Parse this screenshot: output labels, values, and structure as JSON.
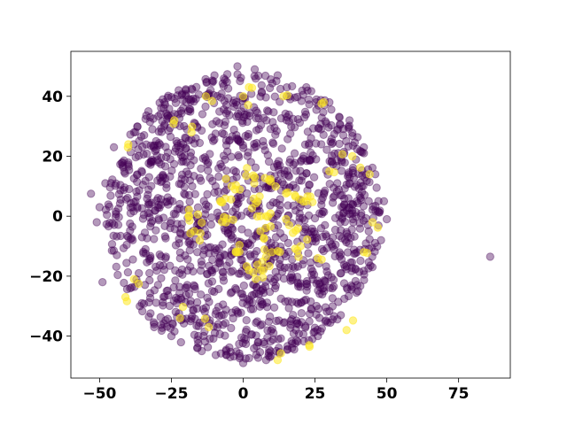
{
  "chart_data": {
    "type": "scatter",
    "title": "",
    "xlabel": "",
    "ylabel": "",
    "xlim": [
      -60,
      93
    ],
    "ylim": [
      -54,
      55
    ],
    "x_ticks": [
      -50,
      -25,
      0,
      25,
      50,
      75
    ],
    "y_ticks": [
      -40,
      -20,
      0,
      20,
      40
    ],
    "x_tick_labels": [
      "−50",
      "−25",
      "0",
      "25",
      "50",
      "75"
    ],
    "y_tick_labels": [
      "−40",
      "−20",
      "0",
      "20",
      "40"
    ],
    "grid": false,
    "legend": "none",
    "marker_alpha": 0.4,
    "series": [
      {
        "color": "#440154",
        "distribution": "dense circular cloud, roughly 1500 points within radius ~50 centered near (0, 0)",
        "points": [
          [
            -53,
            7.5
          ],
          [
            -51,
            -2
          ],
          [
            -50,
            3
          ],
          [
            -49,
            -22
          ],
          [
            -48,
            11
          ],
          [
            -45,
            23
          ],
          [
            -44,
            -13
          ],
          [
            -42,
            18
          ],
          [
            -40,
            -7
          ],
          [
            -38,
            28
          ],
          [
            -36,
            -30
          ],
          [
            -33,
            35
          ],
          [
            -31,
            -37
          ],
          [
            -28,
            39
          ],
          [
            -25,
            -40
          ],
          [
            -20,
            42
          ],
          [
            -16,
            -44
          ],
          [
            -10,
            47
          ],
          [
            -6,
            -45
          ],
          [
            -2,
            50
          ],
          [
            0,
            -49
          ],
          [
            4,
            49
          ],
          [
            8,
            -48
          ],
          [
            12,
            47
          ],
          [
            17,
            -44
          ],
          [
            22,
            43
          ],
          [
            26,
            -40
          ],
          [
            30,
            38
          ],
          [
            34,
            -33
          ],
          [
            37,
            32
          ],
          [
            40,
            -25
          ],
          [
            42,
            23
          ],
          [
            45,
            -17
          ],
          [
            46,
            14
          ],
          [
            48,
            -8
          ],
          [
            49,
            5
          ],
          [
            50,
            -1
          ],
          [
            86,
            -13.5
          ]
        ]
      },
      {
        "color": "#fde725",
        "distribution": "sparse points, clustered near the center and scattered near the edge",
        "points": [
          [
            -40,
            24
          ],
          [
            -41,
            -27
          ],
          [
            -38,
            -21
          ],
          [
            -24,
            32
          ],
          [
            -22,
            -34
          ],
          [
            -18,
            28
          ],
          [
            -19,
            0
          ],
          [
            -17,
            -5
          ],
          [
            -13,
            40
          ],
          [
            -12,
            -37
          ],
          [
            -8,
            5
          ],
          [
            -6,
            -2
          ],
          [
            -4,
            10
          ],
          [
            -2,
            -12
          ],
          [
            0,
            40
          ],
          [
            2,
            43
          ],
          [
            2,
            -18
          ],
          [
            4,
            13
          ],
          [
            5,
            5
          ],
          [
            6,
            -5
          ],
          [
            7,
            -18
          ],
          [
            8,
            0
          ],
          [
            9,
            12
          ],
          [
            10,
            -12
          ],
          [
            12,
            -48
          ],
          [
            14,
            40
          ],
          [
            16,
            -3
          ],
          [
            18,
            7
          ],
          [
            20,
            -10
          ],
          [
            22,
            5
          ],
          [
            23,
            -43
          ],
          [
            26,
            -14
          ],
          [
            28,
            38
          ],
          [
            30,
            15
          ],
          [
            36,
            -38
          ],
          [
            38,
            20
          ],
          [
            42,
            -12
          ],
          [
            44,
            14
          ],
          [
            45,
            -2
          ]
        ]
      }
    ]
  }
}
